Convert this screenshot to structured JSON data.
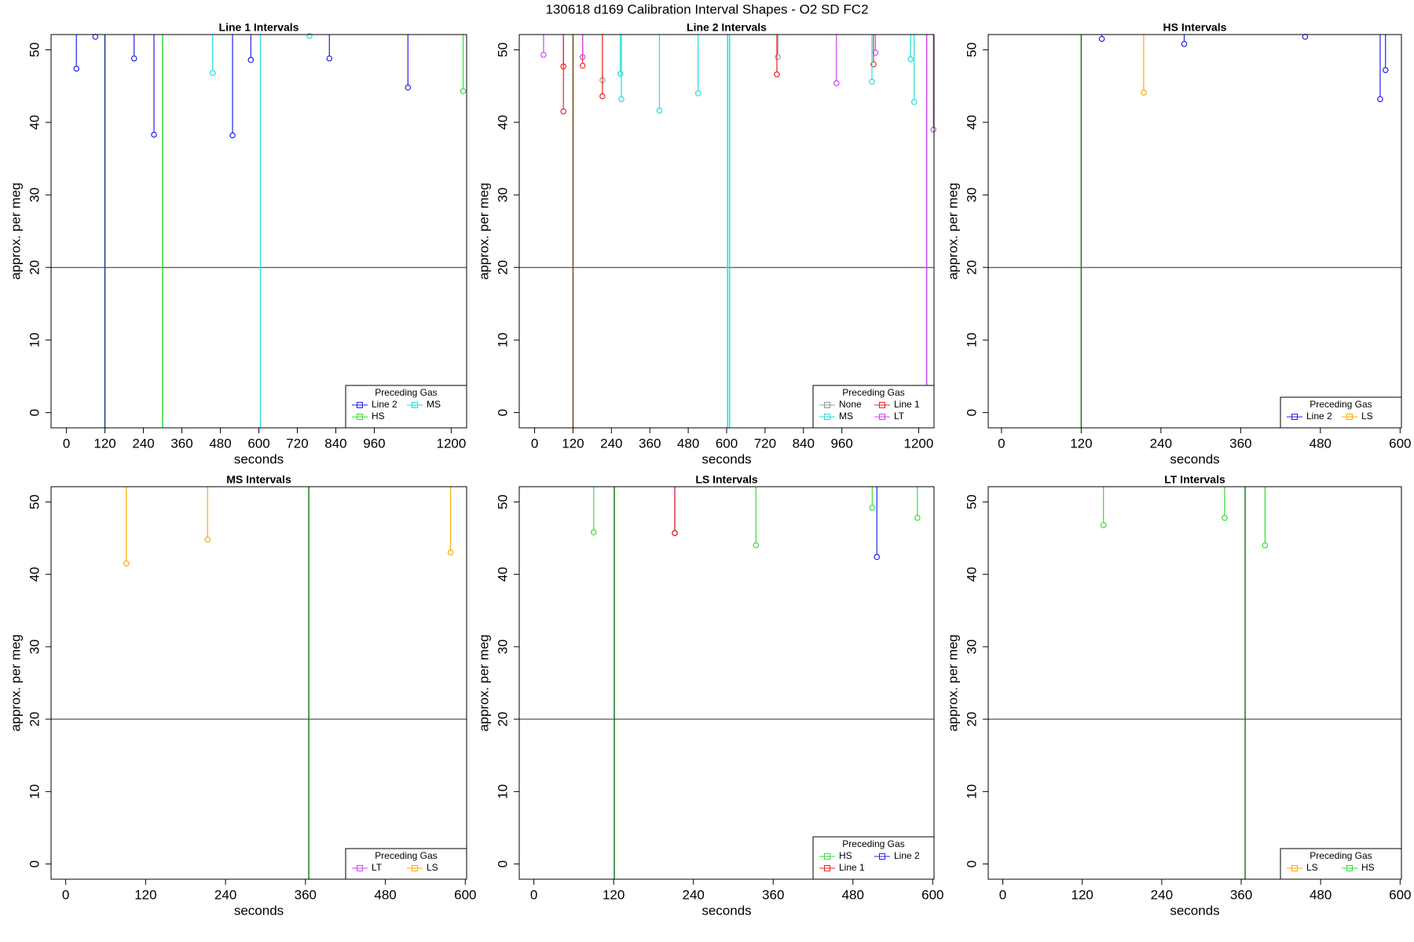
{
  "title": "130618   d169   Calibration Interval Shapes - O2 SD FC2",
  "chart_data": [
    {
      "type": "line",
      "title": "Line 1 Intervals",
      "xlabel": "seconds",
      "ylabel": "approx. per meg",
      "xlim": [
        -48,
        1248
      ],
      "ylim": [
        -2.1,
        52.1
      ],
      "xticks": [
        0,
        120,
        240,
        360,
        480,
        600,
        720,
        840,
        960,
        1200
      ],
      "yticks": [
        0,
        10,
        20,
        30,
        40,
        50
      ],
      "hline": 20,
      "vlines": [
        {
          "value": 120,
          "color": "#1a3c8c"
        },
        {
          "value": 300,
          "color": "#33dd33"
        },
        {
          "value": 605,
          "color": "#33e0e0"
        }
      ],
      "legend": "bottomright",
      "legend_title": "Preceding Gas",
      "series": [
        {
          "name": "Line 2",
          "color": "#2222ee",
          "x": [
            31,
            90,
            211,
            273,
            518,
            575,
            820,
            1065
          ],
          "values": [
            47.4,
            51.8,
            48.8,
            38.3,
            38.2,
            48.6,
            48.8,
            44.8
          ]
        },
        {
          "name": "MS",
          "color": "#22dddd",
          "x": [
            456,
            758
          ],
          "values": [
            46.8,
            51.9
          ]
        },
        {
          "name": "HS",
          "color": "#33dd33",
          "x": [
            1237
          ],
          "values": [
            44.3
          ]
        }
      ]
    },
    {
      "type": "line",
      "title": "Line 2 Intervals",
      "xlabel": "seconds",
      "ylabel": "approx. per meg",
      "xlim": [
        -48,
        1248
      ],
      "ylim": [
        -2.1,
        52.1
      ],
      "xticks": [
        0,
        120,
        240,
        360,
        480,
        600,
        720,
        840,
        960,
        1200
      ],
      "yticks": [
        0,
        10,
        20,
        30,
        40,
        50
      ],
      "hline": 20,
      "vlines": [
        {
          "value": 120,
          "color": "#7a4a14"
        },
        {
          "value": 603,
          "color": "#22dddd"
        },
        {
          "value": 609,
          "color": "#22dddd"
        },
        {
          "value": 1225,
          "color": "#cc44ee"
        }
      ],
      "legend": "bottomright",
      "legend_title": "Preceding Gas",
      "series": [
        {
          "name": "None",
          "color": "#999999",
          "x": [
            212,
            760
          ],
          "values": [
            45.8,
            49
          ]
        },
        {
          "name": "Line 1",
          "color": "#ee2222",
          "x": [
            90,
            90,
            150,
            212,
            757,
            1059
          ],
          "values": [
            41.5,
            47.7,
            47.8,
            43.6,
            46.6,
            48
          ]
        },
        {
          "name": "MS",
          "color": "#22dddd",
          "x": [
            268,
            271,
            390,
            511,
            1054,
            1175,
            1186
          ],
          "values": [
            46.7,
            43.2,
            41.6,
            44,
            45.6,
            48.7,
            42.8
          ]
        },
        {
          "name": "LT",
          "color": "#cc44ee",
          "x": [
            28,
            150,
            943,
            1065,
            1246
          ],
          "values": [
            49.3,
            49,
            45.4,
            49.6,
            39
          ]
        }
      ]
    },
    {
      "type": "line",
      "title": "HS Intervals",
      "xlabel": "seconds",
      "ylabel": "approx. per meg",
      "xlim": [
        -20,
        602
      ],
      "ylim": [
        -2.1,
        52.1
      ],
      "xticks": [
        0,
        120,
        240,
        360,
        480,
        600
      ],
      "yticks": [
        0,
        10,
        20,
        30,
        40,
        50
      ],
      "hline": 20,
      "vlines": [
        {
          "value": 120,
          "color": "#1a7a1a"
        }
      ],
      "legend": "bottomright",
      "legend_title": "Preceding Gas",
      "series": [
        {
          "name": "Line 2",
          "color": "#2222ee",
          "x": [
            151,
            275,
            457,
            570,
            578
          ],
          "values": [
            51.5,
            50.8,
            51.8,
            43.2,
            47.2
          ]
        },
        {
          "name": "LS",
          "color": "#ffaa00",
          "x": [
            214
          ],
          "values": [
            44.1
          ]
        }
      ]
    },
    {
      "type": "line",
      "title": "MS Intervals",
      "xlabel": "seconds",
      "ylabel": "approx. per meg",
      "xlim": [
        -22,
        602
      ],
      "ylim": [
        -2.1,
        52.1
      ],
      "xticks": [
        0,
        120,
        240,
        360,
        480,
        600
      ],
      "yticks": [
        0,
        10,
        20,
        30,
        40,
        50
      ],
      "hline": 20,
      "vlines": [
        {
          "value": 365,
          "color": "#1a7a1a"
        }
      ],
      "legend": "bottomright",
      "legend_title": "Preceding Gas",
      "series": [
        {
          "name": "LT",
          "color": "#cc44ee",
          "x": [],
          "values": []
        },
        {
          "name": "LS",
          "color": "#ffaa00",
          "x": [
            91,
            213,
            578
          ],
          "values": [
            41.5,
            44.8,
            43
          ]
        }
      ]
    },
    {
      "type": "line",
      "title": "LS Intervals",
      "xlabel": "seconds",
      "ylabel": "approx. per meg",
      "xlim": [
        -22,
        602
      ],
      "ylim": [
        -2.1,
        52.1
      ],
      "xticks": [
        0,
        120,
        240,
        360,
        480,
        600
      ],
      "yticks": [
        0,
        10,
        20,
        30,
        40,
        50
      ],
      "hline": 20,
      "vlines": [
        {
          "value": 121,
          "color": "#1a7a1a"
        }
      ],
      "legend": "bottomright",
      "legend_title": "Preceding Gas",
      "series": [
        {
          "name": "HS",
          "color": "#33dd33",
          "x": [
            90,
            334,
            509,
            577
          ],
          "values": [
            45.8,
            44,
            49.2,
            47.8
          ]
        },
        {
          "name": "Line 2",
          "color": "#2222ee",
          "x": [
            212,
            516
          ],
          "values": [
            45.7,
            42.4
          ]
        },
        {
          "name": "Line 1",
          "color": "#ee2222",
          "x": [
            212
          ],
          "values": [
            45.7
          ]
        }
      ]
    },
    {
      "type": "line",
      "title": "LT Intervals",
      "xlabel": "seconds",
      "ylabel": "approx. per meg",
      "xlim": [
        -22,
        602
      ],
      "ylim": [
        -2.1,
        52.1
      ],
      "xticks": [
        0,
        120,
        240,
        360,
        480,
        600
      ],
      "yticks": [
        0,
        10,
        20,
        30,
        40,
        50
      ],
      "hline": 20,
      "vlines": [
        {
          "value": 366,
          "color": "#1a7a1a"
        }
      ],
      "legend": "bottomright",
      "legend_title": "Preceding Gas",
      "series": [
        {
          "name": "LS",
          "color": "#ffaa00",
          "x": [],
          "values": []
        },
        {
          "name": "HS",
          "color": "#33dd33",
          "x": [
            152,
            335,
            396
          ],
          "values": [
            46.8,
            47.8,
            44
          ]
        }
      ]
    }
  ]
}
